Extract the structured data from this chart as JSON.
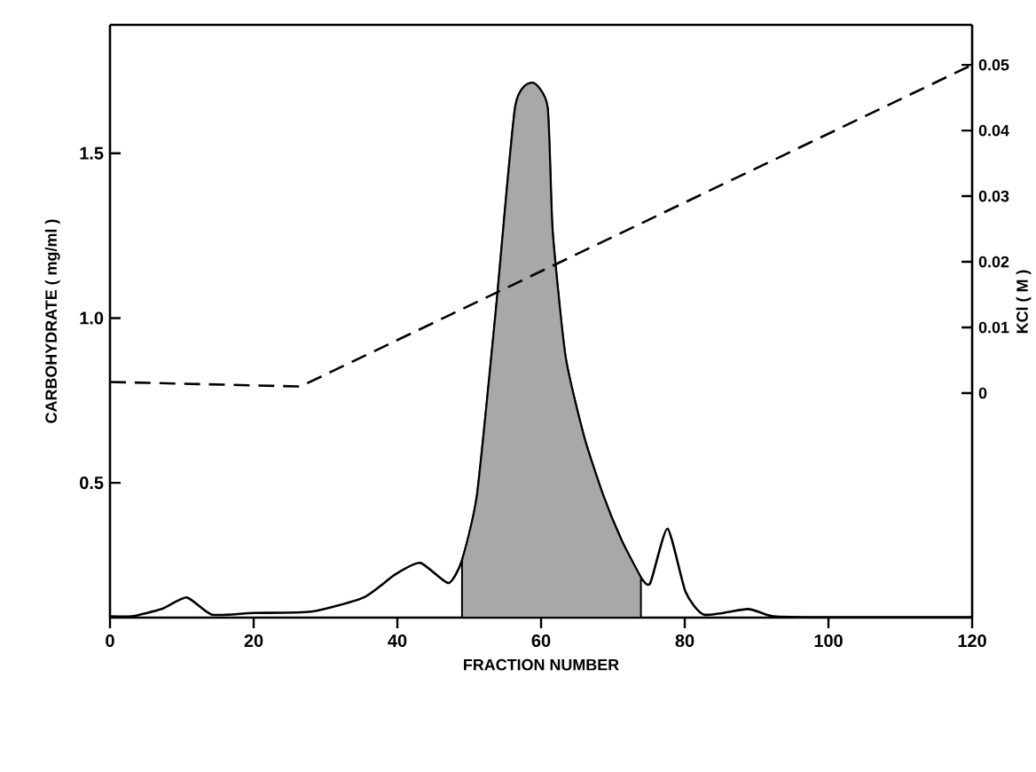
{
  "chart_data": {
    "type": "line",
    "xlabel": "FRACTION NUMBER",
    "ylabel": "CARBOHYDRATE ( mg/ml )",
    "y2label": "KCl ( M )",
    "xlim": [
      0,
      120
    ],
    "xticks": [
      0,
      20,
      40,
      60,
      80,
      100,
      120
    ],
    "ylim": [
      0.091,
      1.89
    ],
    "yticks": [
      {
        "value": 0.5,
        "label": "0.5"
      },
      {
        "value": 1.0,
        "label": "1.0"
      },
      {
        "value": 1.5,
        "label": "1.5"
      }
    ],
    "y2lim": [
      -0.0342,
      0.0561
    ],
    "y2ticks": [
      0,
      {
        "value": 0.01,
        "label": "0.01"
      },
      {
        "value": 0.02,
        "label": "0.02"
      },
      {
        "value": 0.03,
        "label": "0.03"
      },
      {
        "value": 0.04,
        "label": "0.04"
      },
      {
        "value": 0.05,
        "label": "0.05"
      }
    ],
    "series": [
      {
        "color": "#000000",
        "line_style": "solid",
        "x": [
          0,
          3,
          7.2,
          10.7,
          14.2,
          20,
          28,
          35.3,
          39.7,
          43.2,
          47.1,
          49,
          51.1,
          53.7,
          56.4,
          58.8,
          60.9,
          61.6,
          63.4,
          66,
          68.6,
          71.2,
          73.9,
          75.2,
          77.6,
          80.1,
          82.7,
          88.8,
          92.3,
          100,
          120
        ],
        "values": [
          0.095,
          0.095,
          0.117,
          0.152,
          0.1,
          0.105,
          0.109,
          0.152,
          0.222,
          0.257,
          0.196,
          0.265,
          0.465,
          1.02,
          1.64,
          1.714,
          1.64,
          1.265,
          0.883,
          0.639,
          0.465,
          0.326,
          0.213,
          0.196,
          0.361,
          0.17,
          0.1,
          0.117,
          0.095,
          0.092,
          0.092
        ]
      },
      {
        "type": "area",
        "color": "#a8a8a8",
        "x": [
          49,
          51.1,
          53.7,
          56.4,
          58.8,
          60.9,
          61.6,
          63.4,
          66,
          68.6,
          71.2,
          73.9
        ],
        "values": [
          0.265,
          0.465,
          1.02,
          1.64,
          1.714,
          1.64,
          1.265,
          0.883,
          0.639,
          0.465,
          0.326,
          0.213
        ]
      },
      {
        "type": "line",
        "axis": "y2",
        "color": "#000000",
        "line_style": "dashed",
        "x": [
          0,
          26.5,
          120
        ],
        "values": [
          0.0017,
          0.001,
          0.05
        ]
      }
    ]
  }
}
